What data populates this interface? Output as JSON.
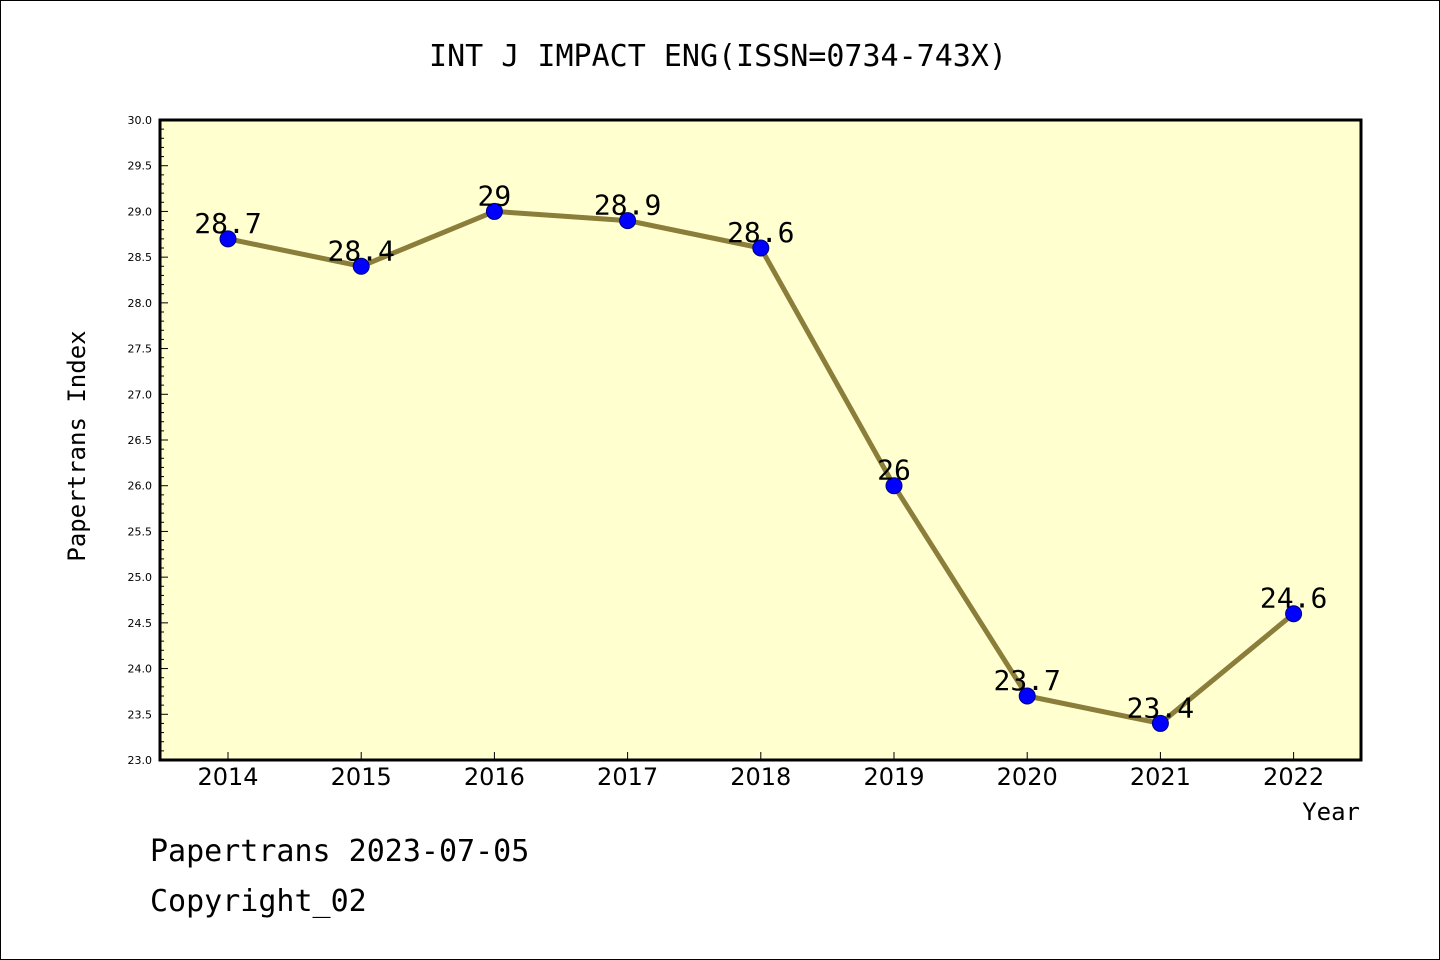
{
  "chart_data": {
    "type": "line",
    "title": "INT J IMPACT ENG(ISSN=0734-743X)",
    "xlabel": "Year",
    "ylabel": "Papertrans Index",
    "categories": [
      "2014",
      "2015",
      "2016",
      "2017",
      "2018",
      "2019",
      "2020",
      "2021",
      "2022"
    ],
    "series": [
      {
        "values": [
          28.7,
          28.4,
          29.0,
          28.9,
          28.6,
          26.0,
          23.7,
          23.4,
          24.6
        ],
        "data_labels": [
          "28.7",
          "28.4",
          "29",
          "28.9",
          "28.6",
          "26",
          "23.7",
          "23.4",
          "24.6"
        ]
      }
    ],
    "ylim": [
      23.0,
      30.0
    ],
    "yticks": [
      "23.0",
      "23.5",
      "24.0",
      "24.5",
      "25.0",
      "25.5",
      "26.0",
      "26.5",
      "27.0",
      "27.5",
      "28.0",
      "28.5",
      "29.0",
      "29.5",
      "30.0"
    ],
    "grid": false,
    "legend": "none",
    "colors": {
      "plot_background": "#ffffd0",
      "line": "#8b7d3a",
      "marker": "#0000ff",
      "marker_edge": "#000080"
    }
  },
  "footer": {
    "line1": "Papertrans 2023-07-05",
    "line2": "Copyright_02"
  }
}
